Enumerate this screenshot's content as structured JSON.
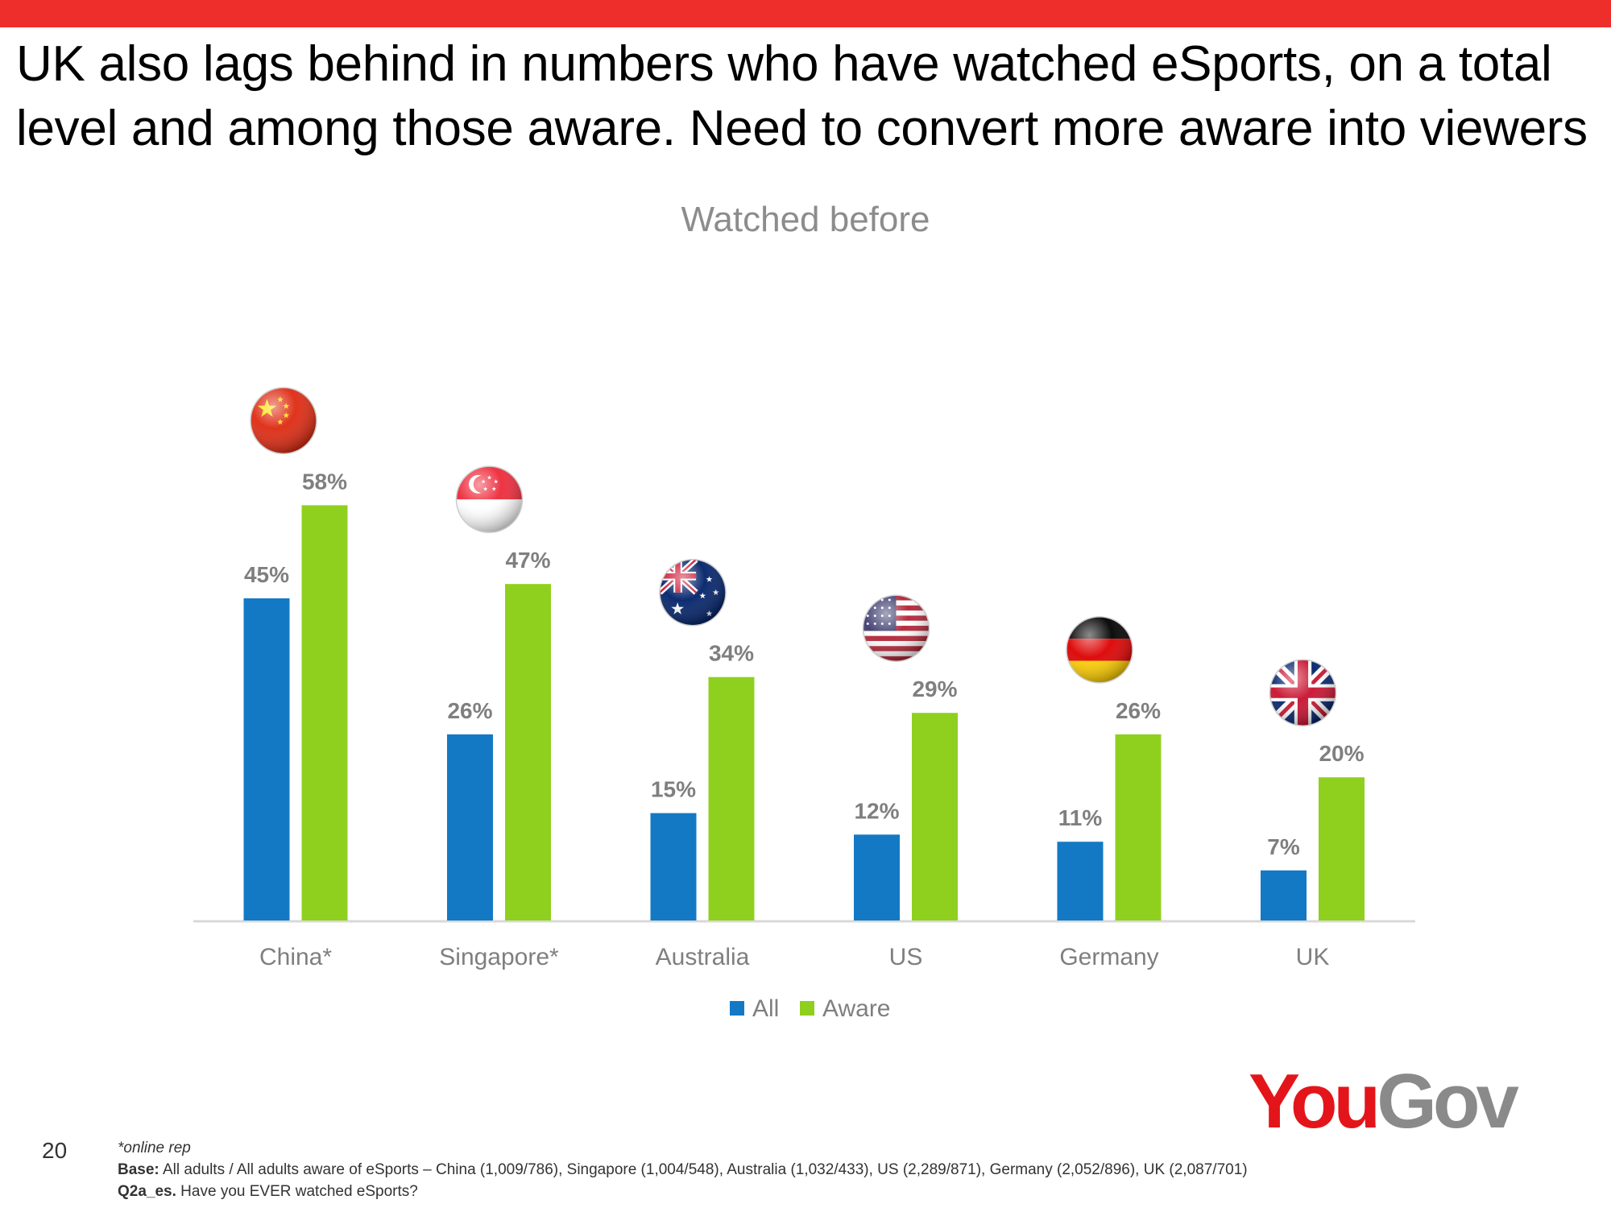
{
  "slide": {
    "headline": "UK also lags behind in numbers who have watched eSports, on a total level and among those aware. Need to convert more aware into viewers",
    "page_number": "20"
  },
  "logo": {
    "part1": "You",
    "part2": "Gov",
    "color1": "#e3151a",
    "color2": "#8a8a8a"
  },
  "footnotes": {
    "online_rep": "*online rep",
    "base_label": "Base:",
    "base_text": " All adults / All adults aware of eSports – China (1,009/786), Singapore (1,004/548), Australia (1,032/433), US (2,289/871), Germany (2,052/896), UK (2,087/701)",
    "question_label": "Q2a_es.",
    "question_text": " Have you EVER watched eSports?"
  },
  "colors": {
    "all": "#1479c4",
    "aware": "#8fd01f",
    "topbar": "#ee2e2b"
  },
  "chart_data": {
    "type": "bar",
    "title": "Watched before",
    "categories": [
      "China*",
      "Singapore*",
      "Australia",
      "US",
      "Germany",
      "UK"
    ],
    "flag_icons": [
      "china-flag-icon",
      "singapore-flag-icon",
      "australia-flag-icon",
      "us-flag-icon",
      "germany-flag-icon",
      "uk-flag-icon"
    ],
    "series": [
      {
        "name": "All",
        "values": [
          45,
          26,
          15,
          12,
          11,
          7
        ],
        "labels": [
          "45%",
          "26%",
          "15%",
          "12%",
          "11%",
          "7%"
        ]
      },
      {
        "name": "Aware",
        "values": [
          58,
          47,
          34,
          29,
          26,
          20
        ],
        "labels": [
          "58%",
          "47%",
          "34%",
          "29%",
          "26%",
          "20%"
        ]
      }
    ],
    "ylim": [
      0,
      58
    ],
    "grid": false,
    "legend": "bottom"
  }
}
